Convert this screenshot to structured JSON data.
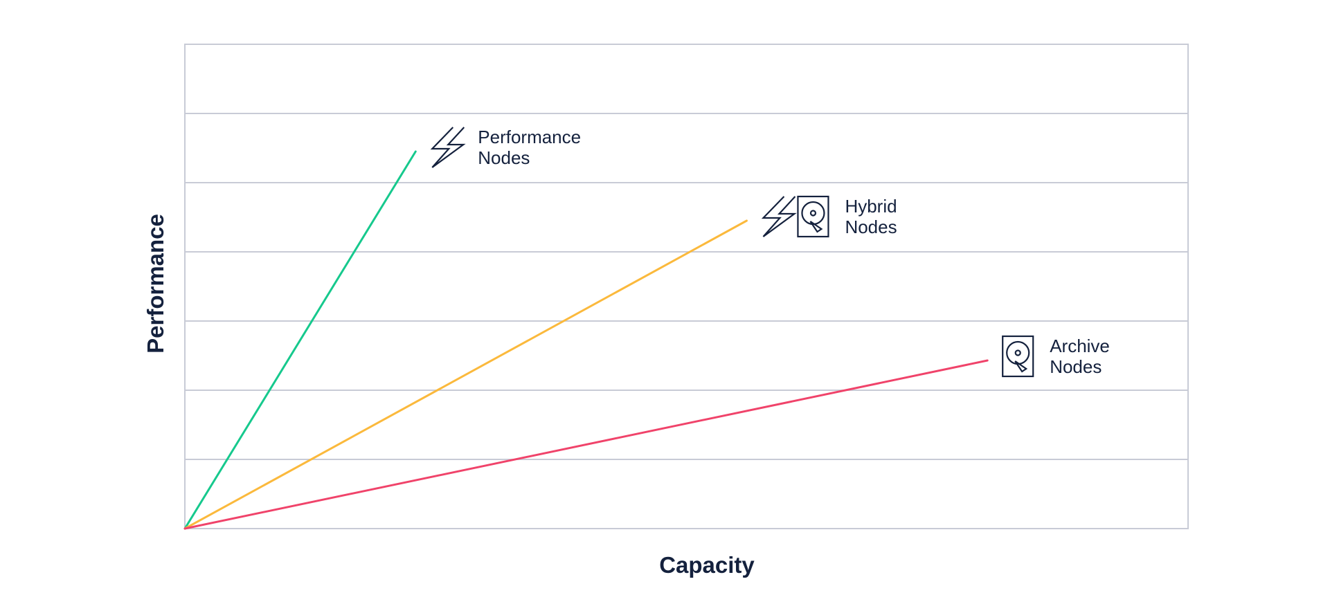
{
  "chart_data": {
    "type": "line",
    "title": "",
    "xlabel": "Capacity",
    "ylabel": "Performance",
    "xlim": [
      0,
      100
    ],
    "ylim": [
      0,
      7
    ],
    "grid": true,
    "legend": "inline-end-labels",
    "series": [
      {
        "name": "Performance Nodes",
        "label_lines": [
          "Performance",
          "Nodes"
        ],
        "color": "#16c98d",
        "icons": [
          "lightning-icon"
        ],
        "x": [
          0,
          23
        ],
        "y": [
          0,
          5.45
        ]
      },
      {
        "name": "Hybrid Nodes",
        "label_lines": [
          "Hybrid",
          "Nodes"
        ],
        "color": "#fbb93c",
        "icons": [
          "lightning-icon",
          "hard-drive-icon"
        ],
        "x": [
          0,
          56
        ],
        "y": [
          0,
          4.45
        ]
      },
      {
        "name": "Archive Nodes",
        "label_lines": [
          "Archive",
          "Nodes"
        ],
        "color": "#f0436a",
        "icons": [
          "hard-drive-icon"
        ],
        "x": [
          0,
          80
        ],
        "y": [
          0,
          2.43
        ]
      }
    ]
  },
  "colors": {
    "grid": "#c8cbd6",
    "text": "#14213d"
  }
}
